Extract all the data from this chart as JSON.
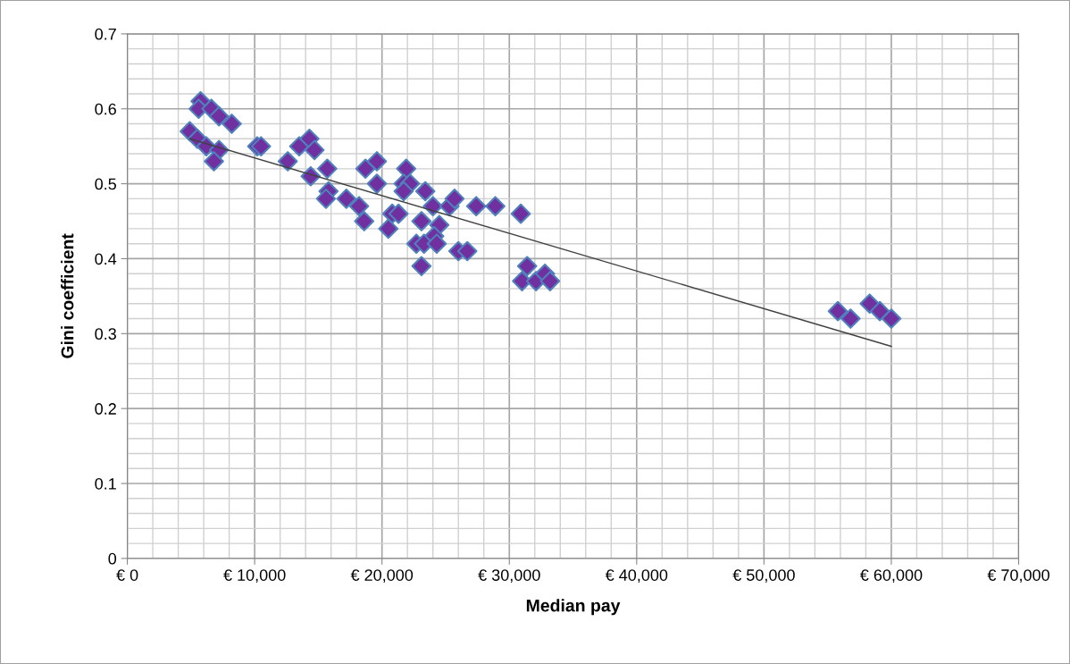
{
  "chart_data": {
    "type": "scatter",
    "xlabel": "Median pay",
    "ylabel": "Gini coefficient",
    "xlim": [
      0,
      70000
    ],
    "ylim": [
      0,
      0.7
    ],
    "xticks": [
      {
        "value": 0,
        "label": "€ 0"
      },
      {
        "value": 10000,
        "label": "€ 10,000"
      },
      {
        "value": 20000,
        "label": "€ 20,000"
      },
      {
        "value": 30000,
        "label": "€ 30,000"
      },
      {
        "value": 40000,
        "label": "€ 40,000"
      },
      {
        "value": 50000,
        "label": "€ 50,000"
      },
      {
        "value": 60000,
        "label": "€ 60,000"
      },
      {
        "value": 70000,
        "label": "€ 70,000"
      }
    ],
    "yticks": [
      0,
      0.1,
      0.2,
      0.3,
      0.4,
      0.5,
      0.6,
      0.7
    ],
    "grid": true,
    "series": [
      {
        "marker": "diamond",
        "color": "#7030a0",
        "x": [
          5750,
          5600,
          6600,
          7200,
          8200,
          4900,
          5500,
          6200,
          7200,
          6800,
          10200,
          10500,
          12600,
          13500,
          14300,
          14700,
          15700,
          14400,
          15800,
          15600,
          17200,
          18200,
          18600,
          18700,
          19600,
          19600,
          20800,
          21300,
          20500,
          21900,
          21700,
          22200,
          21700,
          23400,
          24000,
          23100,
          24500,
          24100,
          22700,
          23300,
          24300,
          23100,
          25300,
          25700,
          26000,
          26700,
          27400,
          28900,
          30900,
          31400,
          31000,
          32100,
          32800,
          33200,
          55800,
          56800,
          58300,
          59100,
          60000
        ],
        "values": [
          0.61,
          0.6,
          0.6,
          0.59,
          0.58,
          0.57,
          0.56,
          0.55,
          0.545,
          0.53,
          0.55,
          0.55,
          0.53,
          0.55,
          0.56,
          0.545,
          0.52,
          0.51,
          0.49,
          0.48,
          0.48,
          0.47,
          0.45,
          0.52,
          0.53,
          0.5,
          0.46,
          0.46,
          0.44,
          0.52,
          0.5,
          0.5,
          0.49,
          0.49,
          0.47,
          0.45,
          0.445,
          0.43,
          0.42,
          0.42,
          0.42,
          0.39,
          0.47,
          0.48,
          0.41,
          0.41,
          0.47,
          0.47,
          0.46,
          0.39,
          0.37,
          0.37,
          0.38,
          0.37,
          0.33,
          0.32,
          0.34,
          0.33,
          0.32
        ]
      },
      {
        "type": "line",
        "color": "#404040",
        "x": [
          4900,
          60000
        ],
        "values": [
          0.56,
          0.283
        ]
      }
    ]
  }
}
